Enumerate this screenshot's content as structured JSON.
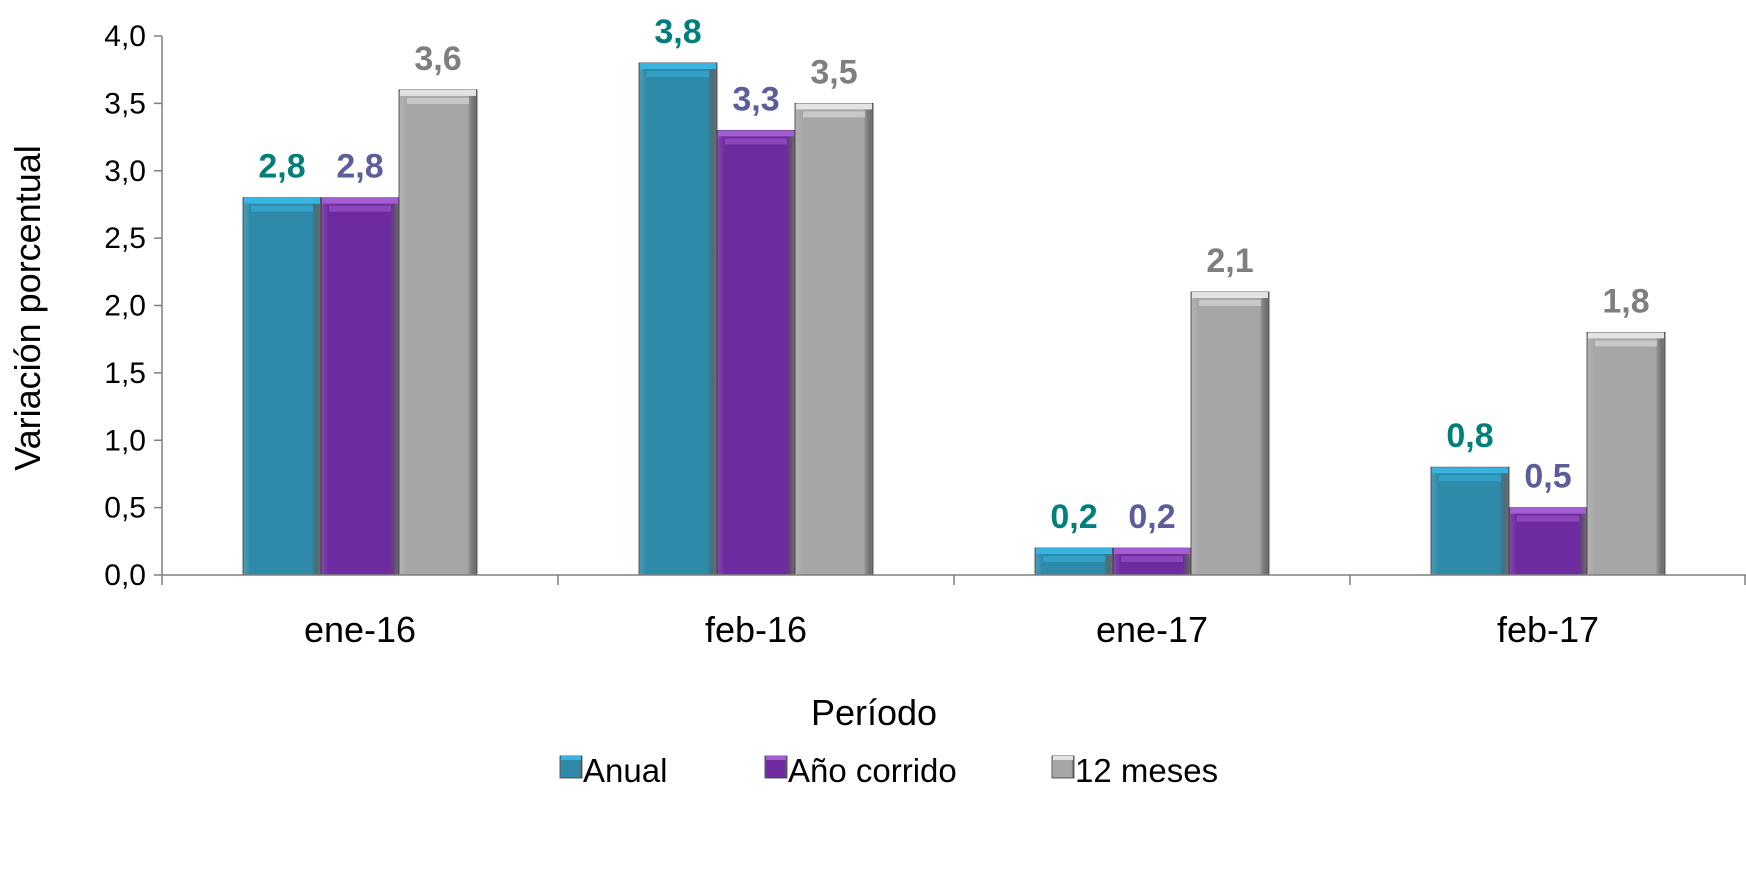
{
  "chart_data": {
    "type": "bar",
    "title": "",
    "xlabel": "Período",
    "ylabel": "Variación porcentual",
    "categories": [
      "ene-16",
      "feb-16",
      "ene-17",
      "feb-17"
    ],
    "ylim": [
      0,
      4
    ],
    "yticks": [
      0,
      0.5,
      1,
      1.5,
      2,
      2.5,
      3,
      3.5,
      4
    ],
    "ytick_labels": [
      "0,0",
      "0,5",
      "1,0",
      "1,5",
      "2,0",
      "2,5",
      "3,0",
      "3,5",
      "4,0"
    ],
    "grid": false,
    "legend_position": "bottom",
    "series": [
      {
        "name": "Anual",
        "values": [
          2.8,
          3.8,
          0.2,
          0.8
        ],
        "labels": [
          "2,8",
          "3,8",
          "0,2",
          "0,8"
        ],
        "color": "#2E8AA8",
        "highlight": "#37B4E0",
        "label_color": "#007F7B"
      },
      {
        "name": "Año corrido",
        "values": [
          2.8,
          3.3,
          0.2,
          0.5
        ],
        "labels": [
          "2,8",
          "3,3",
          "0,2",
          "0,5"
        ],
        "color": "#6E2BA0",
        "highlight": "#A45DD3",
        "label_color": "#5C5E9C"
      },
      {
        "name": "12 meses",
        "values": [
          3.6,
          3.5,
          2.1,
          1.8
        ],
        "labels": [
          "3,6",
          "3,5",
          "2,1",
          "1,8"
        ],
        "color": "#A6A6A6",
        "highlight": "#E3E3E3",
        "label_color": "#7F7F7F"
      }
    ]
  }
}
